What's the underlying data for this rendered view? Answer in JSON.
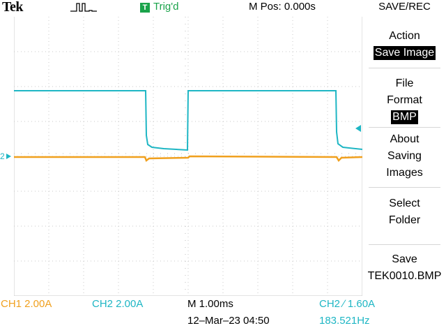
{
  "header": {
    "logo": "Tek",
    "acquire_state": "run-pulse-icon",
    "trig_badge": "T",
    "trig_status": "Trig'd",
    "m_pos": "M Pos: 0.000s",
    "menu_title": "SAVE/REC"
  },
  "side_menu": {
    "action_label": "Action",
    "action_value": "Save Image",
    "file_format_label_1": "File",
    "file_format_label_2": "Format",
    "file_format_value": "BMP",
    "about_1": "About",
    "about_2": "Saving",
    "about_3": "Images",
    "select_1": "Select",
    "select_2": "Folder",
    "save_1": "Save",
    "save_2": "TEK0010.BMP"
  },
  "channels": {
    "ch2_marker": "2",
    "ch1_color": "#f0a01e",
    "ch2_color": "#1eb6c4"
  },
  "status": {
    "ch1": "CH1  2.00A",
    "ch2": "CH2  2.00A",
    "timebase": "M 1.00ms",
    "date": "12–Mar–23 04:50",
    "trigger": "CH2 ∕ 1.60A",
    "frequency": "183.521Hz"
  }
}
